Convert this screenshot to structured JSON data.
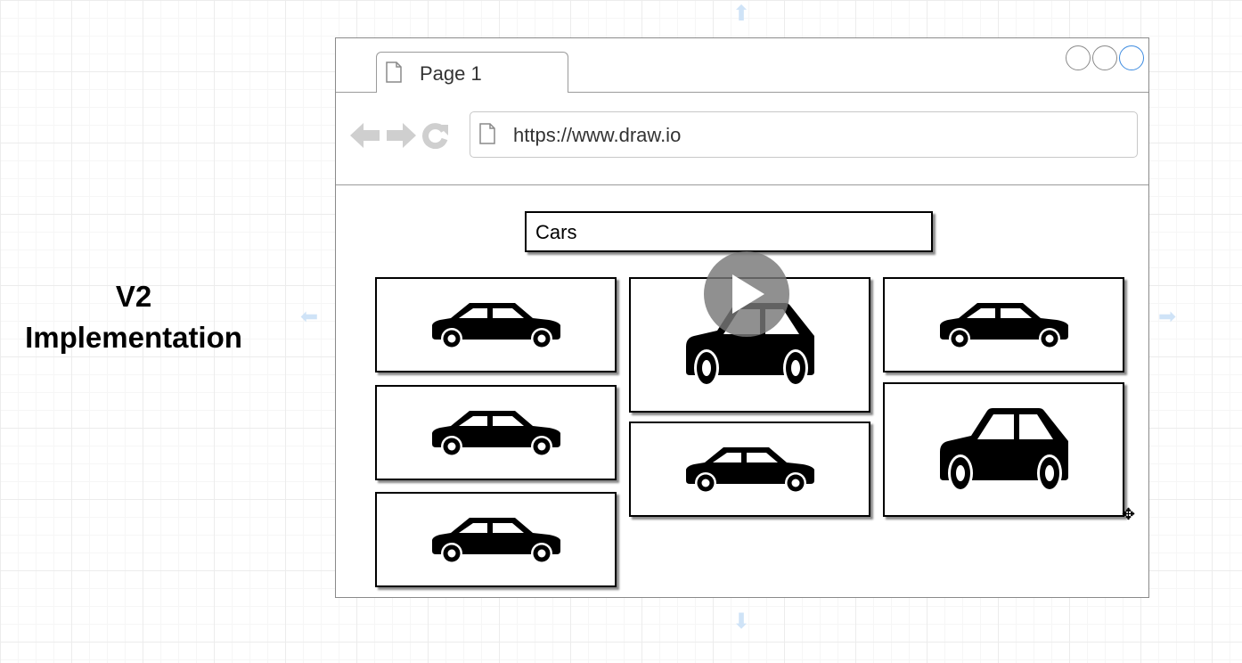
{
  "label": "V2 Implementation",
  "browser": {
    "tab_label": "Page 1",
    "url": "https://www.draw.io",
    "window_controls": [
      "circle",
      "circle",
      "circle"
    ]
  },
  "search": {
    "value": "Cars"
  },
  "cards": [
    {
      "icon": "car-icon"
    },
    {
      "icon": "car-icon"
    },
    {
      "icon": "car-icon"
    },
    {
      "icon": "car-icon"
    },
    {
      "icon": "car-icon"
    },
    {
      "icon": "car-icon"
    },
    {
      "icon": "car-icon"
    }
  ],
  "overlay": {
    "icon": "play-icon"
  },
  "colors": {
    "accent": "#3d8be0",
    "hint": "#cfe3f7",
    "play": "#787878"
  }
}
